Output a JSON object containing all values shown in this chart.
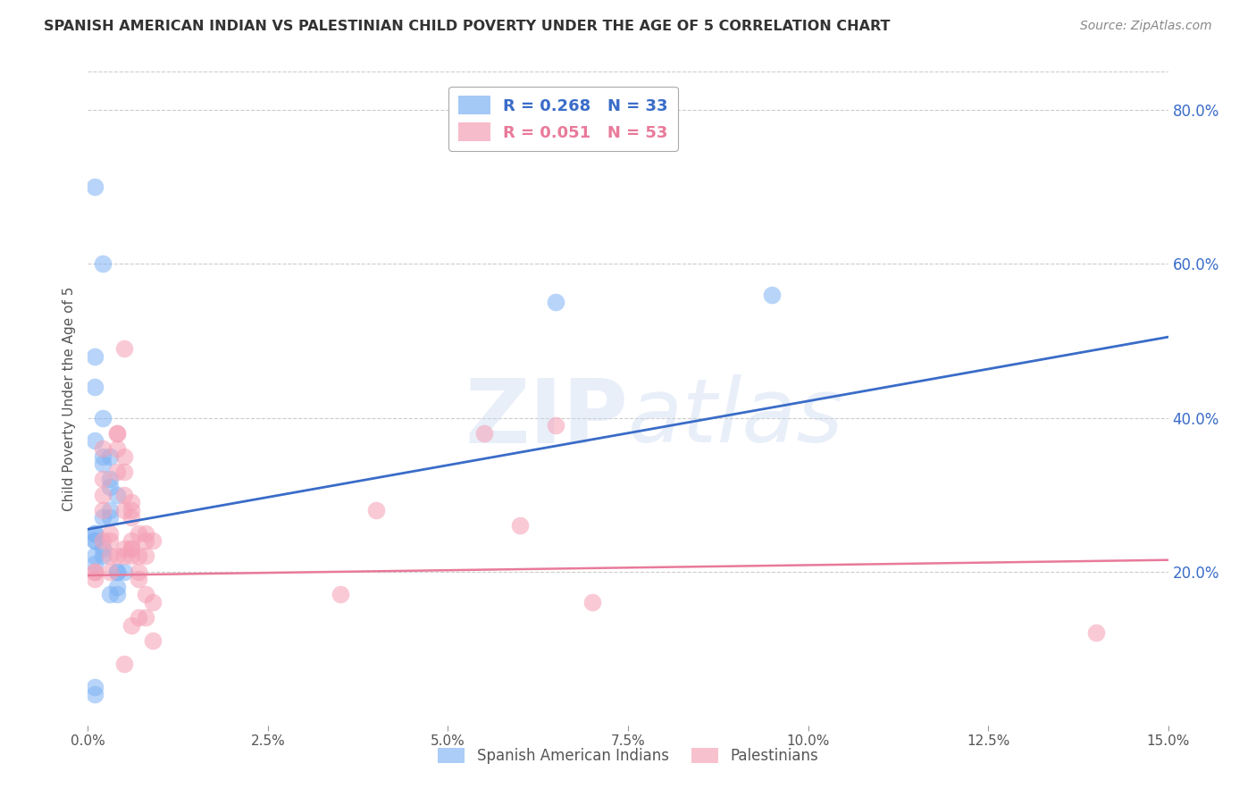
{
  "title": "SPANISH AMERICAN INDIAN VS PALESTINIAN CHILD POVERTY UNDER THE AGE OF 5 CORRELATION CHART",
  "source": "Source: ZipAtlas.com",
  "ylabel": "Child Poverty Under the Age of 5",
  "legend_label_1": "Spanish American Indians",
  "legend_label_2": "Palestinians",
  "R1": 0.268,
  "N1": 33,
  "R2": 0.051,
  "N2": 53,
  "color_blue": "#7EB3F5",
  "color_pink": "#F5A0B5",
  "line_blue": "#3A6CC8",
  "line_pink": "#E87A9A",
  "xmin": 0.0,
  "xmax": 0.15,
  "ymin": 0.0,
  "ymax": 0.85,
  "blue_line_y0": 0.255,
  "blue_line_y1": 0.505,
  "pink_line_y0": 0.195,
  "pink_line_y1": 0.215,
  "blue_x": [
    0.001,
    0.002,
    0.001,
    0.001,
    0.002,
    0.001,
    0.003,
    0.002,
    0.002,
    0.003,
    0.003,
    0.004,
    0.003,
    0.003,
    0.002,
    0.001,
    0.001,
    0.001,
    0.001,
    0.002,
    0.002,
    0.001,
    0.001,
    0.004,
    0.005,
    0.004,
    0.004,
    0.003,
    0.004,
    0.001,
    0.065,
    0.001,
    0.095
  ],
  "blue_y": [
    0.7,
    0.6,
    0.48,
    0.44,
    0.4,
    0.37,
    0.35,
    0.35,
    0.34,
    0.32,
    0.31,
    0.3,
    0.28,
    0.27,
    0.27,
    0.25,
    0.25,
    0.24,
    0.24,
    0.23,
    0.22,
    0.22,
    0.21,
    0.2,
    0.2,
    0.2,
    0.18,
    0.17,
    0.17,
    0.05,
    0.55,
    0.04,
    0.56
  ],
  "pink_x": [
    0.001,
    0.001,
    0.001,
    0.002,
    0.002,
    0.002,
    0.002,
    0.002,
    0.003,
    0.003,
    0.003,
    0.003,
    0.004,
    0.004,
    0.004,
    0.004,
    0.004,
    0.005,
    0.005,
    0.005,
    0.005,
    0.005,
    0.006,
    0.006,
    0.006,
    0.006,
    0.006,
    0.006,
    0.007,
    0.007,
    0.007,
    0.007,
    0.007,
    0.008,
    0.008,
    0.008,
    0.008,
    0.008,
    0.009,
    0.009,
    0.009,
    0.055,
    0.06,
    0.07,
    0.065,
    0.04,
    0.035,
    0.005,
    0.005,
    0.006,
    0.006,
    0.14,
    0.005
  ],
  "pink_y": [
    0.2,
    0.2,
    0.19,
    0.36,
    0.32,
    0.3,
    0.28,
    0.24,
    0.25,
    0.24,
    0.22,
    0.2,
    0.38,
    0.38,
    0.36,
    0.33,
    0.22,
    0.35,
    0.33,
    0.3,
    0.28,
    0.22,
    0.29,
    0.28,
    0.27,
    0.24,
    0.23,
    0.13,
    0.25,
    0.22,
    0.2,
    0.19,
    0.14,
    0.25,
    0.24,
    0.22,
    0.17,
    0.14,
    0.24,
    0.16,
    0.11,
    0.38,
    0.26,
    0.16,
    0.39,
    0.28,
    0.17,
    0.49,
    0.23,
    0.23,
    0.22,
    0.12,
    0.08
  ],
  "watermark": "ZIPatlas",
  "background_color": "#FFFFFF",
  "grid_color": "#CCCCCC",
  "yticks": [
    0.2,
    0.4,
    0.6,
    0.8
  ],
  "xticks": [
    0.0,
    0.025,
    0.05,
    0.075,
    0.1,
    0.125,
    0.15
  ]
}
